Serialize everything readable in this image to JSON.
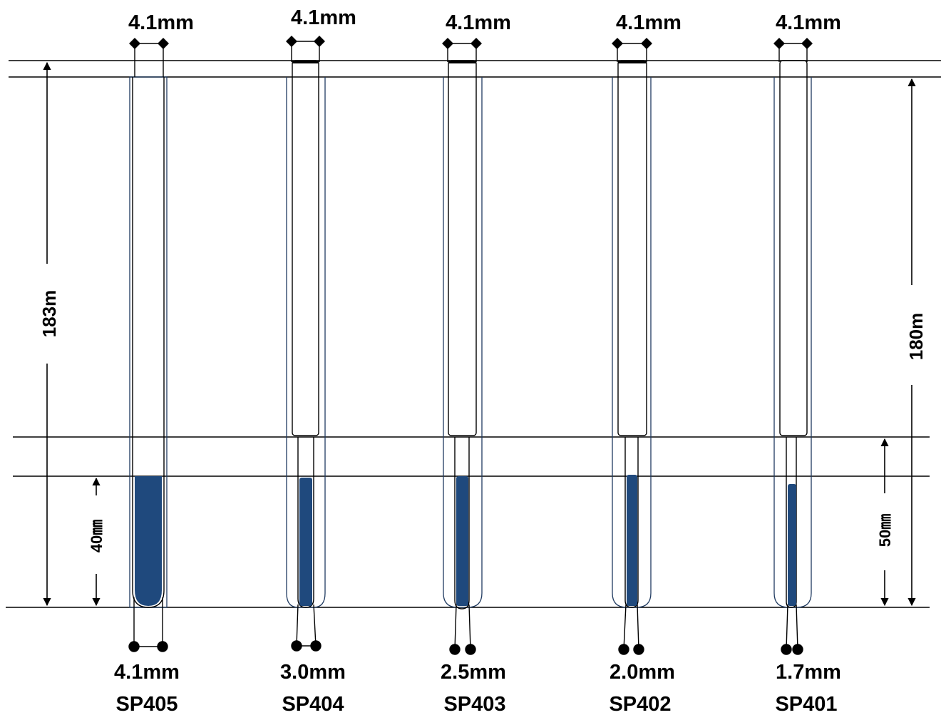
{
  "top_labels": [
    "4.1mm",
    "4.1mm",
    "4.1mm",
    "4.1mm",
    "4.1mm"
  ],
  "bottom_sizes": [
    "4.1mm",
    "3.0mm",
    "2.5mm",
    "2.0mm",
    "1.7mm"
  ],
  "part_numbers": [
    "SP405",
    "SP404",
    "SP403",
    "SP402",
    "SP401"
  ],
  "left_height_label": "183m",
  "right_height_label": "180m",
  "left_fill_label": "40㎜",
  "right_fill_label": "50㎜",
  "colors": {
    "fill": "#1f497d",
    "line": "#000000",
    "tube_outline": "#1f3a60"
  }
}
